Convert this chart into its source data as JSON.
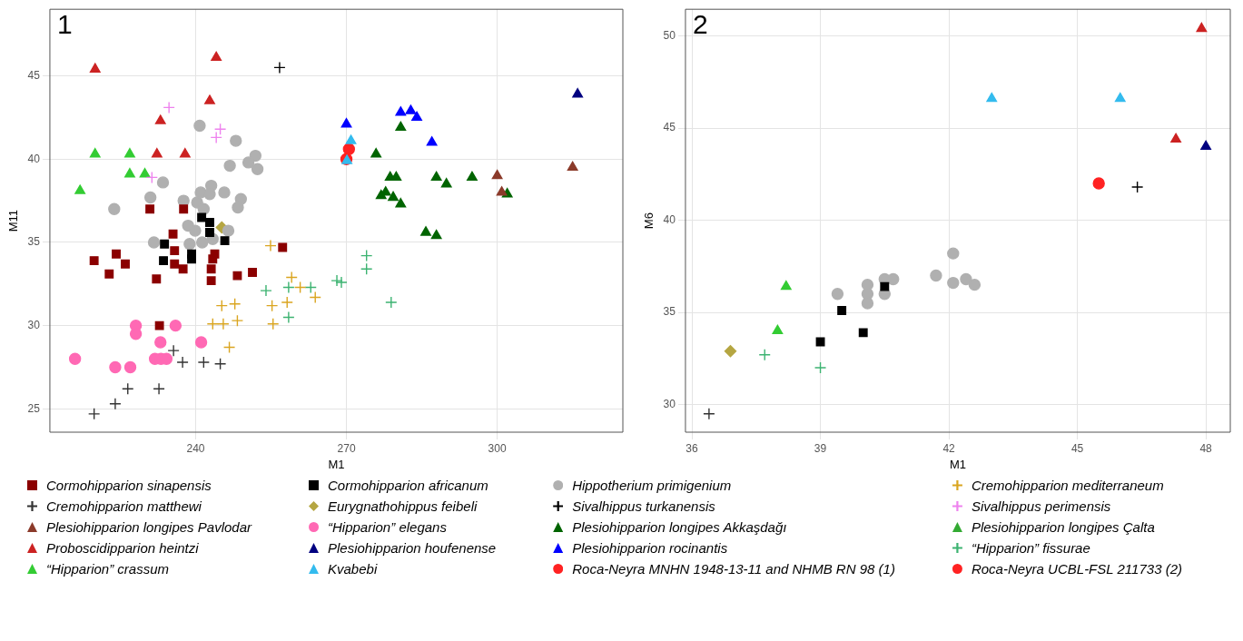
{
  "chart_data": [
    {
      "type": "scatter",
      "title": "1",
      "xlabel": "M1",
      "ylabel": "M11",
      "xlim": [
        211,
        325
      ],
      "ylim": [
        23.6,
        49
      ],
      "xticks": [
        240,
        270,
        300
      ],
      "yticks": [
        25,
        30,
        35,
        40,
        45
      ],
      "grid": true,
      "legend": "bottom",
      "series": [
        {
          "name": "Cormohipparion sinapensis",
          "color": "#8b0000",
          "marker": "square",
          "x": [
            230.9,
            237.6,
            235.5,
            235.8,
            235.8,
            237.5,
            243.8,
            243.4,
            243.1,
            243.1,
            219.8,
            224.2,
            226.0,
            222.8,
            232.2,
            248.3,
            251.3,
            257.3,
            232.8
          ],
          "values": [
            37.0,
            37.0,
            35.5,
            34.5,
            33.7,
            33.4,
            34.3,
            34.0,
            33.4,
            32.7,
            33.9,
            34.3,
            33.7,
            33.1,
            32.8,
            33.0,
            33.2,
            34.7,
            30.0
          ]
        },
        {
          "name": "Cormohipparion africanum",
          "color": "#000000",
          "marker": "square",
          "x": [
            241.2,
            242.8,
            242.8,
            245.8,
            233.8,
            239.2,
            233.6,
            239.2
          ],
          "values": [
            36.5,
            36.2,
            35.6,
            35.1,
            34.9,
            34.3,
            33.9,
            34.0
          ]
        },
        {
          "name": "Hippotherium primigenium",
          "color": "#b0b0b0",
          "marker": "circle",
          "x": [
            240.8,
            248.0,
            251.9,
            250.5,
            252.3,
            246.8,
            233.5,
            223.8,
            231.0,
            237.6,
            241.0,
            243.1,
            242.8,
            245.7,
            249.0,
            248.4,
            240.3,
            241.6,
            238.5,
            239.9,
            246.5,
            243.4,
            241.3,
            238.8,
            231.7
          ],
          "values": [
            42.0,
            41.1,
            40.2,
            39.8,
            39.4,
            39.6,
            38.6,
            37.0,
            37.7,
            37.5,
            38.0,
            38.4,
            37.9,
            38.0,
            37.6,
            37.1,
            37.4,
            37.0,
            36.0,
            35.7,
            35.7,
            35.2,
            35.0,
            34.9,
            35.0
          ]
        },
        {
          "name": "Cremohipparion mediterraneum",
          "color": "#daa520",
          "marker": "cross",
          "x": [
            254.9,
            259.1,
            260.8,
            258.2,
            255.2,
            255.4,
            263.8,
            245.2,
            247.8,
            243.4,
            245.5,
            248.3,
            246.7
          ],
          "values": [
            34.8,
            32.9,
            32.3,
            31.4,
            31.2,
            30.1,
            31.7,
            31.2,
            31.3,
            30.1,
            30.1,
            30.3,
            28.7
          ]
        },
        {
          "name": "Cremohipparion matthewi",
          "color": "#333333",
          "marker": "cross",
          "x": [
            219.8,
            224.0,
            226.5,
            232.7,
            235.6,
            237.4,
            241.6,
            244.9
          ],
          "values": [
            24.7,
            25.3,
            26.2,
            26.2,
            28.5,
            27.8,
            27.8,
            27.7
          ]
        },
        {
          "name": "Eurygnathohippus feibeli",
          "color": "#b5a642",
          "marker": "diamond",
          "x": [
            245.2
          ],
          "values": [
            35.9
          ]
        },
        {
          "name": "Sivalhippus turkanensis",
          "color": "#000000",
          "marker": "cross",
          "x": [
            256.7
          ],
          "values": [
            45.5
          ]
        },
        {
          "name": "Sivalhippus perimensis",
          "color": "#ee82ee",
          "marker": "cross",
          "x": [
            234.7,
            244.9,
            244.1,
            231.3
          ],
          "values": [
            43.1,
            41.8,
            41.3,
            38.9
          ]
        },
        {
          "name": "Plesiohipparion longipes Pavlodar",
          "color": "#8b3a2a",
          "marker": "triangle",
          "x": [
            300.0,
            300.9,
            315.0
          ],
          "values": [
            39.0,
            38.0,
            39.5
          ]
        },
        {
          "name": "“Hipparion” elegans",
          "color": "#ff69b4",
          "marker": "circle",
          "x": [
            216.0,
            228.1,
            228.1,
            224.0,
            227.0,
            236.0,
            233.0,
            241.1,
            231.9,
            233.1,
            234.2
          ],
          "values": [
            28.0,
            30.0,
            29.5,
            27.5,
            27.5,
            30.0,
            29.0,
            29.0,
            28.0,
            28.0,
            28.0
          ]
        },
        {
          "name": "Plesiohipparion longipes Akkaşdağı",
          "color": "#006400",
          "marker": "triangle",
          "x": [
            280.8,
            275.9,
            278.7,
            279.9,
            277.8,
            276.9,
            279.3,
            280.8,
            287.9,
            289.9,
            295.0,
            302.0,
            285.8,
            287.9
          ],
          "values": [
            41.9,
            40.3,
            38.9,
            38.9,
            38.0,
            37.8,
            37.7,
            37.3,
            38.9,
            38.5,
            38.9,
            37.9,
            35.6,
            35.4
          ]
        },
        {
          "name": "Plesiohipparion longipes Çalta",
          "color": "#33aa33",
          "marker": "triangle"
        },
        {
          "name": "Proboscidipparion heintzi",
          "color": "#cc2222",
          "marker": "triangle",
          "x": [
            220.0,
            244.1,
            242.8,
            233.0,
            232.3,
            237.9
          ],
          "values": [
            45.4,
            46.1,
            43.5,
            42.3,
            40.3,
            40.3
          ]
        },
        {
          "name": "Plesiohipparion houfenense",
          "color": "#000080",
          "marker": "triangle",
          "x": [
            316.0
          ],
          "values": [
            43.9
          ]
        },
        {
          "name": "Plesiohipparion rocinantis",
          "color": "#0000ff",
          "marker": "triangle",
          "x": [
            270.0,
            280.8,
            282.8,
            284.0,
            287.0
          ],
          "values": [
            42.1,
            42.8,
            42.9,
            42.5,
            41.0
          ]
        },
        {
          "name": "“Hipparion” fissurae",
          "color": "#3cb371",
          "marker": "cross",
          "x": [
            254.0,
            258.5,
            262.9,
            258.5,
            268.1,
            269.0,
            274.0,
            274.0,
            278.9
          ],
          "values": [
            32.1,
            32.3,
            32.3,
            30.5,
            32.7,
            32.6,
            34.2,
            33.4,
            31.4
          ]
        },
        {
          "name": "“Hipparion” crassum",
          "color": "#33cc33",
          "marker": "triangle",
          "x": [
            220.0,
            226.9,
            226.9,
            229.9,
            217.0
          ],
          "values": [
            40.3,
            40.3,
            39.1,
            39.1,
            38.1
          ]
        },
        {
          "name": "Kvabebi",
          "color": "#33bbee",
          "marker": "triangle",
          "x": [
            270.9,
            270.1
          ],
          "values": [
            41.1,
            39.9
          ]
        },
        {
          "name": "Roca-Neyra MNHN 1948-13-11 and NHMB RN 98 (1)",
          "color": "#ff2222",
          "marker": "circle",
          "x": [
            270.5,
            270.0
          ],
          "values": [
            40.6,
            40.0
          ]
        },
        {
          "name": "Roca-Neyra UCBL-FSL 211733 (2)",
          "color": "#ff2222",
          "marker": "circle"
        }
      ]
    },
    {
      "type": "scatter",
      "title": "2",
      "xlabel": "M1",
      "ylabel": "M6",
      "xlim": [
        35.85,
        48.57
      ],
      "ylim": [
        28.5,
        51.45
      ],
      "xticks": [
        36,
        39,
        42,
        45,
        48
      ],
      "yticks": [
        30,
        35,
        40,
        45,
        50
      ],
      "grid": true,
      "series": [
        {
          "color": "#000000",
          "marker": "square",
          "x": [
            39.0,
            39.5,
            40.0,
            40.5
          ],
          "values": [
            33.4,
            35.1,
            33.9,
            36.4
          ]
        },
        {
          "color": "#b0b0b0",
          "marker": "circle",
          "x": [
            39.4,
            40.1,
            40.1,
            40.1,
            40.5,
            40.7,
            40.5,
            41.7,
            42.1,
            42.1,
            42.4,
            42.6
          ],
          "values": [
            36.0,
            36.5,
            36.0,
            35.5,
            36.8,
            36.8,
            36.0,
            37.0,
            38.2,
            36.6,
            36.8,
            36.5
          ]
        },
        {
          "color": "#333333",
          "marker": "cross",
          "x": [
            36.4
          ],
          "values": [
            29.5
          ]
        },
        {
          "color": "#b5a642",
          "marker": "diamond",
          "x": [
            36.9
          ],
          "values": [
            32.9
          ]
        },
        {
          "color": "#000000",
          "marker": "cross",
          "x": [
            46.4
          ],
          "values": [
            41.8
          ]
        },
        {
          "color": "#cc2222",
          "marker": "triangle",
          "x": [
            47.9,
            47.3
          ],
          "values": [
            50.4,
            44.4
          ]
        },
        {
          "color": "#000080",
          "marker": "triangle",
          "x": [
            48.0
          ],
          "values": [
            44.0
          ]
        },
        {
          "color": "#3cb371",
          "marker": "cross",
          "x": [
            37.7,
            39.0
          ],
          "values": [
            32.7,
            32.0
          ]
        },
        {
          "color": "#33cc33",
          "marker": "triangle",
          "x": [
            38.2,
            38.0
          ],
          "values": [
            36.4,
            34.0
          ]
        },
        {
          "color": "#33bbee",
          "marker": "triangle",
          "x": [
            43.0,
            46.0
          ],
          "values": [
            46.6,
            46.6
          ]
        },
        {
          "color": "#ff2222",
          "marker": "circle",
          "x": [
            45.5
          ],
          "values": [
            42.0
          ]
        }
      ]
    }
  ]
}
